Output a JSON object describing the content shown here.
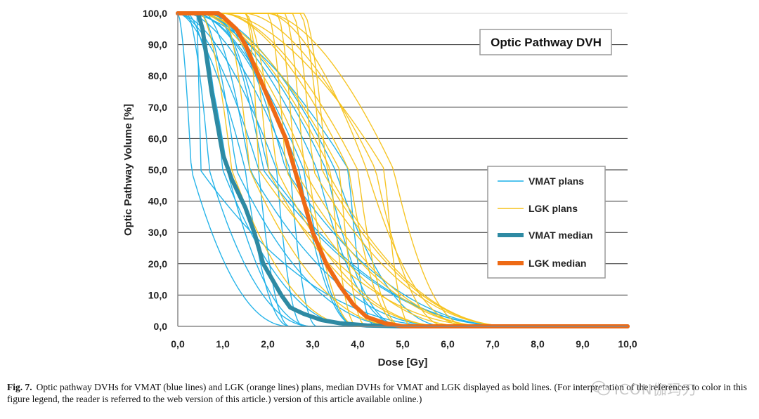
{
  "chart_data": {
    "type": "line",
    "title": "Optic Pathway DVH",
    "xlabel": "Dose [Gy]",
    "ylabel": "Optic Pathway Volume [%]",
    "xlim": [
      0,
      10
    ],
    "ylim": [
      0,
      100
    ],
    "xticks": [
      "0,0",
      "1,0",
      "2,0",
      "3,0",
      "4,0",
      "5,0",
      "6,0",
      "7,0",
      "8,0",
      "9,0",
      "10,0"
    ],
    "yticks": [
      "0,0",
      "10,0",
      "20,0",
      "30,0",
      "40,0",
      "50,0",
      "60,0",
      "70,0",
      "80,0",
      "90,0",
      "100,0"
    ],
    "grid": "horizontal",
    "legend": {
      "placement": "center-right",
      "entries": [
        {
          "label": "VMAT plans",
          "color": "#1ab0e8",
          "style": "thin"
        },
        {
          "label": "LGK plans",
          "color": "#f5c21b",
          "style": "thin"
        },
        {
          "label": "VMAT median",
          "color": "#2e8aa3",
          "style": "bold"
        },
        {
          "label": "LGK median",
          "color": "#ee6a15",
          "style": "bold"
        }
      ]
    },
    "series": [
      {
        "name": "VMAT median",
        "color": "#2e8aa3",
        "bold": true,
        "x": [
          0,
          0.45,
          0.55,
          0.75,
          1.0,
          1.2,
          1.5,
          1.7,
          1.9,
          2.1,
          2.3,
          2.5,
          2.8,
          3.2,
          3.6,
          4.2,
          5.0,
          10.0
        ],
        "y": [
          100,
          100,
          95,
          75,
          55,
          47,
          38,
          30,
          20,
          15,
          10,
          6,
          4,
          2,
          1,
          0.3,
          0,
          0
        ]
      },
      {
        "name": "LGK median",
        "color": "#ee6a15",
        "bold": true,
        "x": [
          0,
          0.9,
          1.0,
          1.3,
          1.5,
          1.8,
          2.1,
          2.4,
          2.6,
          2.8,
          3.0,
          3.3,
          3.6,
          3.9,
          4.2,
          4.6,
          5.0,
          10.0
        ],
        "y": [
          100,
          100,
          99,
          95,
          90,
          80,
          70,
          60,
          50,
          40,
          30,
          20,
          13,
          7,
          3,
          1,
          0,
          0
        ]
      }
    ],
    "bundles": [
      {
        "name": "VMAT plans",
        "color": "#1ab0e8",
        "plateau": [
          0.0,
          0.2,
          0.4,
          0.5,
          0.6,
          0.8
        ],
        "d50": [
          0.3,
          0.7,
          1.0,
          1.3,
          1.6,
          1.9,
          2.2,
          2.5,
          2.8,
          3.1,
          3.5,
          2.0,
          1.5,
          1.1,
          2.7,
          3.3,
          0.5,
          2.4,
          1.8,
          3.8
        ],
        "tail": [
          2.5,
          3.0,
          4.0,
          5.0,
          6.0,
          7.5
        ]
      },
      {
        "name": "LGK plans",
        "color": "#f5c21b",
        "plateau": [
          0.5,
          1.0,
          1.5,
          2.0,
          2.5,
          2.8
        ],
        "d50": [
          1.2,
          1.6,
          2.0,
          2.4,
          2.8,
          3.2,
          3.6,
          4.0,
          4.4,
          4.8,
          2.6,
          3.0,
          3.4,
          3.8,
          2.2,
          4.2,
          1.8,
          3.3,
          2.9,
          4.6
        ],
        "tail": [
          4.0,
          5.0,
          6.0,
          6.5,
          7.0,
          7.5
        ]
      }
    ]
  },
  "caption": {
    "label": "Fig. 7.",
    "text": "Optic pathway DVHs for VMAT (blue lines) and LGK (orange lines) plans, median DVHs for VMAT and LGK displayed as bold lines. (For interpretation of the references to color in this figure legend, the reader is referred to the web version of this article.) version of this article available online.)"
  },
  "watermark": {
    "text": "ICON伽玛刀"
  }
}
